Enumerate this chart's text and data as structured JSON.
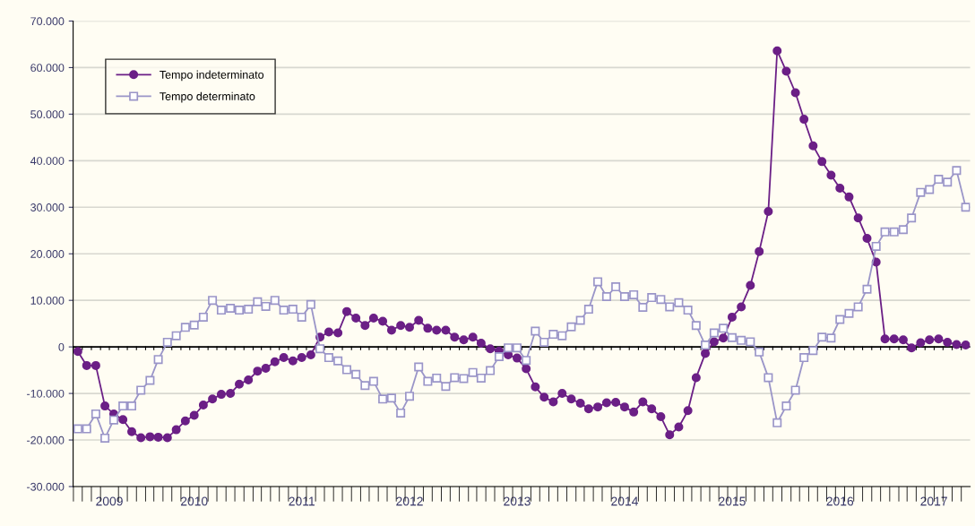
{
  "chart_data": {
    "type": "line",
    "x": [
      "2009-06",
      "2009-07",
      "2009-08",
      "2009-09",
      "2009-10",
      "2009-11",
      "2009-12",
      "2010-01",
      "2010-02",
      "2010-03",
      "2010-04",
      "2010-05",
      "2010-06",
      "2010-07",
      "2010-08",
      "2010-09",
      "2010-10",
      "2010-11",
      "2010-12",
      "2011-01",
      "2011-02",
      "2011-03",
      "2011-04",
      "2011-05",
      "2011-06",
      "2011-07",
      "2011-08",
      "2011-09",
      "2011-10",
      "2011-11",
      "2011-12",
      "2012-01",
      "2012-02",
      "2012-03",
      "2012-04",
      "2012-05",
      "2012-06",
      "2012-07",
      "2012-08",
      "2012-09",
      "2012-10",
      "2012-11",
      "2012-12",
      "2013-01",
      "2013-02",
      "2013-03",
      "2013-04",
      "2013-05",
      "2013-06",
      "2013-07",
      "2013-08",
      "2013-09",
      "2013-10",
      "2013-11",
      "2013-12",
      "2014-01",
      "2014-02",
      "2014-03",
      "2014-04",
      "2014-05",
      "2014-06",
      "2014-07",
      "2014-08",
      "2014-09",
      "2014-10",
      "2014-11",
      "2014-12",
      "2015-01",
      "2015-02",
      "2015-03",
      "2015-04",
      "2015-05",
      "2015-06",
      "2015-07",
      "2015-08",
      "2015-09",
      "2015-10",
      "2015-11",
      "2015-12",
      "2016-01",
      "2016-02",
      "2016-03",
      "2016-04",
      "2016-05",
      "2016-06",
      "2016-07",
      "2016-08",
      "2016-09",
      "2016-10",
      "2016-11",
      "2016-12",
      "2017-01",
      "2017-02",
      "2017-03",
      "2017-04",
      "2017-05",
      "2017-06",
      "2017-07",
      "2017-08",
      "2017-09"
    ],
    "series": [
      {
        "name": "Tempo indeterminato",
        "color": "#6b1f86",
        "marker": "circle",
        "values": [
          -1000,
          -4000,
          -4000,
          -12700,
          -14400,
          -15600,
          -18200,
          -19500,
          -19300,
          -19400,
          -19500,
          -17800,
          -15900,
          -14700,
          -12500,
          -11200,
          -10200,
          -10000,
          -8000,
          -7100,
          -5200,
          -4600,
          -3200,
          -2300,
          -3000,
          -2300,
          -1700,
          2100,
          3200,
          3000,
          7600,
          6200,
          4600,
          6200,
          5500,
          3600,
          4600,
          4200,
          5700,
          4000,
          3600,
          3600,
          2100,
          1500,
          2100,
          800,
          -400,
          -900,
          -1700,
          -2400,
          -4700,
          -8600,
          -10800,
          -11800,
          -10000,
          -11200,
          -12100,
          -13300,
          -12900,
          -12000,
          -11900,
          -12900,
          -14000,
          -11800,
          -13300,
          -15000,
          -18900,
          -17200,
          -13700,
          -6600,
          -1400,
          1100,
          1900,
          6400,
          8600,
          13200,
          20500,
          29100,
          63600,
          59200,
          54600,
          48900,
          43200,
          39800,
          36900,
          34100,
          32200,
          27700,
          23300,
          18200,
          1700,
          1700,
          1500,
          -200,
          900,
          1500,
          1700,
          1000,
          500,
          400
        ]
      },
      {
        "name": "Tempo determinato",
        "color": "#9a95c8",
        "marker": "square",
        "values": [
          -17600,
          -17600,
          -14400,
          -19600,
          -15700,
          -12700,
          -12700,
          -9300,
          -7200,
          -2700,
          1000,
          2400,
          4200,
          4700,
          6400,
          10000,
          7900,
          8300,
          7900,
          8100,
          9700,
          8700,
          10000,
          7900,
          8100,
          6400,
          9100,
          -400,
          -2300,
          -3000,
          -4900,
          -5900,
          -8300,
          -7400,
          -11200,
          -11000,
          -14200,
          -10600,
          -4300,
          -7400,
          -6700,
          -8500,
          -6600,
          -6800,
          -5500,
          -6700,
          -5100,
          -2100,
          -200,
          -200,
          -2900,
          3400,
          1000,
          2700,
          2400,
          4300,
          5700,
          8100,
          14000,
          10800,
          12900,
          10800,
          11200,
          8500,
          10600,
          10200,
          8600,
          9500,
          7900,
          4600,
          400,
          3000,
          4000,
          2000,
          1400,
          1100,
          -1100,
          -6600,
          -16300,
          -12700,
          -9300,
          -2300,
          -800,
          2100,
          1900,
          5900,
          7200,
          8600,
          12400,
          21600,
          24700,
          24700,
          25200,
          27700,
          33200,
          33800,
          36000,
          35400,
          37900,
          30000
        ]
      }
    ],
    "xlim": [
      "2009-05-16",
      "2017-09-16"
    ],
    "xticks": [
      {
        "value": "2009-09-16",
        "label": "2009"
      },
      {
        "value": "2010-07-01",
        "label": "2010"
      },
      {
        "value": "2011-07-01",
        "label": "2011"
      },
      {
        "value": "2012-07-01",
        "label": "2012"
      },
      {
        "value": "2013-07-01",
        "label": "2013"
      },
      {
        "value": "2014-07-01",
        "label": "2014"
      },
      {
        "value": "2015-07-01",
        "label": "2015"
      },
      {
        "value": "2016-07-01",
        "label": "2016"
      },
      {
        "value": "2017-05-16",
        "label": "2017"
      }
    ],
    "ylim": [
      -30000,
      70000
    ],
    "yticks": [
      {
        "value": -30000,
        "label": "-30.000"
      },
      {
        "value": -20000,
        "label": "-20.000"
      },
      {
        "value": -10000,
        "label": "-10.000"
      },
      0,
      {
        "value": 10000,
        "label": "10.000"
      },
      {
        "value": 20000,
        "label": "20.000"
      },
      {
        "value": 30000,
        "label": "30.000"
      },
      {
        "value": 40000,
        "label": "40.000"
      },
      {
        "value": 50000,
        "label": "50.000"
      },
      {
        "value": 60000,
        "label": "60.000"
      },
      {
        "value": 70000,
        "label": "70.000"
      }
    ],
    "ref_lines": [
      {
        "axis": "y",
        "value": 0,
        "color": "#000000"
      }
    ],
    "grid": "y",
    "legend": "top left"
  }
}
